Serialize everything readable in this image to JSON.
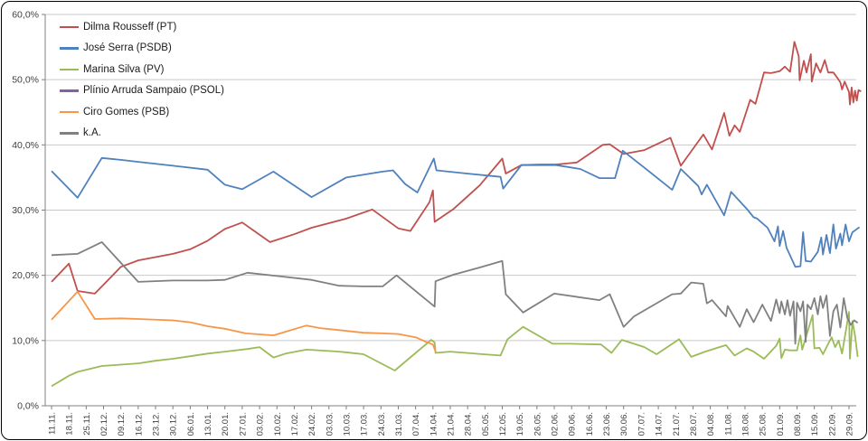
{
  "chart_data": {
    "type": "line",
    "title": "",
    "xlabel": "",
    "ylabel": "",
    "ylim": [
      0,
      60
    ],
    "grid": "horizontal",
    "legend_position": "top-left",
    "y_tick_labels": [
      "0,0%",
      "10,0%",
      "20,0%",
      "30,0%",
      "40,0%",
      "50,0%",
      "60,0%"
    ],
    "x_tick_labels": [
      "11.11.",
      "18.11.",
      "25.11.",
      "02.12.",
      "09.12.",
      "16.12.",
      "23.12.",
      "30.12.",
      "06.01.",
      "13.01.",
      "20.01.",
      "27.01.",
      "03.02.",
      "10.02.",
      "17.02.",
      "24.02.",
      "03.03.",
      "10.03.",
      "17.03.",
      "24.03.",
      "31.03.",
      "07.04.",
      "14.04.",
      "21.04.",
      "28.04.",
      "05.05.",
      "12.05.",
      "19.05.",
      "26.05.",
      "02.06.",
      "09.06.",
      "16.06.",
      "23.06.",
      "30.06.",
      "07.07.",
      "14.07.",
      "21.07.",
      "28.07.",
      "04.08.",
      "11.08.",
      "18.08.",
      "25.08.",
      "01.09.",
      "08.09.",
      "15.09.",
      "22.09.",
      "29.09."
    ],
    "x_axis_note": "x values below are fractional week offsets from 11.11. (tick 0) read from poll-date positions; y values are percent",
    "colors": {
      "background": "#FFFFFF",
      "frame_border": "#000000",
      "gridline": "#C9C9C9",
      "axis": "#808080",
      "tick_text": "#404040"
    },
    "series": [
      {
        "name": "Dilma Rousseff (PT)",
        "color": "#C0504D",
        "points": [
          [
            0,
            19.0
          ],
          [
            1,
            21.8
          ],
          [
            1.5,
            17.6
          ],
          [
            2.5,
            17.2
          ],
          [
            4,
            21.3
          ],
          [
            5,
            22.3
          ],
          [
            7,
            23.3
          ],
          [
            8,
            24.0
          ],
          [
            9,
            25.3
          ],
          [
            10,
            27.1
          ],
          [
            11,
            28.1
          ],
          [
            12.6,
            25.1
          ],
          [
            14,
            26.3
          ],
          [
            15,
            27.3
          ],
          [
            17,
            28.7
          ],
          [
            18.5,
            30.1
          ],
          [
            20,
            27.2
          ],
          [
            20.7,
            26.8
          ],
          [
            21.8,
            31.2
          ],
          [
            22.0,
            33.0
          ],
          [
            22.1,
            28.2
          ],
          [
            23.2,
            30.2
          ],
          [
            24.7,
            33.8
          ],
          [
            26,
            37.9
          ],
          [
            26.2,
            35.6
          ],
          [
            27.1,
            36.9
          ],
          [
            28.2,
            37.0
          ],
          [
            29.1,
            37.0
          ],
          [
            30.3,
            37.3
          ],
          [
            31.8,
            40.0
          ],
          [
            32.2,
            40.1
          ],
          [
            33,
            38.6
          ],
          [
            34.2,
            39.2
          ],
          [
            35.7,
            41.1
          ],
          [
            36.3,
            36.8
          ],
          [
            37.6,
            41.6
          ],
          [
            38.1,
            39.3
          ],
          [
            38.8,
            44.9
          ],
          [
            39.1,
            41.4
          ],
          [
            39.4,
            43.0
          ],
          [
            39.7,
            42.0
          ],
          [
            40.3,
            46.9
          ],
          [
            40.6,
            46.3
          ],
          [
            41.1,
            51.1
          ],
          [
            41.5,
            51.0
          ],
          [
            42.0,
            51.3
          ],
          [
            42.3,
            52.0
          ],
          [
            42.6,
            51.2
          ],
          [
            42.85,
            55.8
          ],
          [
            43.1,
            53.6
          ],
          [
            43.15,
            49.9
          ],
          [
            43.4,
            52.9
          ],
          [
            43.55,
            51.1
          ],
          [
            43.8,
            53.9
          ],
          [
            43.85,
            49.7
          ],
          [
            44.1,
            52.5
          ],
          [
            44.35,
            51.1
          ],
          [
            44.6,
            53.0
          ],
          [
            44.8,
            51.1
          ],
          [
            45.1,
            51.1
          ],
          [
            45.35,
            50.2
          ],
          [
            45.5,
            49.6
          ],
          [
            45.6,
            48.5
          ],
          [
            45.75,
            49.7
          ],
          [
            46.0,
            48.1
          ],
          [
            46.05,
            46.2
          ],
          [
            46.15,
            48.8
          ],
          [
            46.25,
            46.5
          ],
          [
            46.35,
            48.3
          ],
          [
            46.45,
            46.8
          ],
          [
            46.55,
            48.4
          ],
          [
            46.7,
            48.2
          ]
        ]
      },
      {
        "name": "José Serra (PSDB)",
        "color": "#4F81BD",
        "points": [
          [
            0,
            36.0
          ],
          [
            1.5,
            31.9
          ],
          [
            2.9,
            38.0
          ],
          [
            4,
            37.7
          ],
          [
            5,
            37.4
          ],
          [
            7,
            36.8
          ],
          [
            9,
            36.2
          ],
          [
            10,
            33.9
          ],
          [
            11,
            33.2
          ],
          [
            12.8,
            35.9
          ],
          [
            15,
            32.0
          ],
          [
            17,
            35.0
          ],
          [
            19.1,
            35.9
          ],
          [
            19.7,
            36.1
          ],
          [
            20.4,
            34.0
          ],
          [
            21.1,
            32.7
          ],
          [
            22.05,
            37.9
          ],
          [
            22.2,
            36.1
          ],
          [
            24,
            35.6
          ],
          [
            25.9,
            35.1
          ],
          [
            26.05,
            33.3
          ],
          [
            27.1,
            36.9
          ],
          [
            29.1,
            36.9
          ],
          [
            30.5,
            36.3
          ],
          [
            31.6,
            34.9
          ],
          [
            32.5,
            34.9
          ],
          [
            32.95,
            39.1
          ],
          [
            34.2,
            36.5
          ],
          [
            35.8,
            33.1
          ],
          [
            36.3,
            36.3
          ],
          [
            37.3,
            33.7
          ],
          [
            37.5,
            32.4
          ],
          [
            37.8,
            33.9
          ],
          [
            38.8,
            29.2
          ],
          [
            39.2,
            32.8
          ],
          [
            40.1,
            30.2
          ],
          [
            40.5,
            28.9
          ],
          [
            40.7,
            28.7
          ],
          [
            41.3,
            27.3
          ],
          [
            41.7,
            25.2
          ],
          [
            41.9,
            27.5
          ],
          [
            42.0,
            24.5
          ],
          [
            42.2,
            26.8
          ],
          [
            42.4,
            24.2
          ],
          [
            42.9,
            21.3
          ],
          [
            43.2,
            21.4
          ],
          [
            43.35,
            26.6
          ],
          [
            43.5,
            22.2
          ],
          [
            43.8,
            22.1
          ],
          [
            44.2,
            23.6
          ],
          [
            44.4,
            25.8
          ],
          [
            44.5,
            23.2
          ],
          [
            44.7,
            26.2
          ],
          [
            44.9,
            23.4
          ],
          [
            45.1,
            27.8
          ],
          [
            45.25,
            24.1
          ],
          [
            45.5,
            26.4
          ],
          [
            45.6,
            24.6
          ],
          [
            45.8,
            27.8
          ],
          [
            46.0,
            25.2
          ],
          [
            46.2,
            26.6
          ],
          [
            46.4,
            27.0
          ],
          [
            46.6,
            27.4
          ]
        ]
      },
      {
        "name": "Marina Silva (PV)",
        "color": "#9BBB59",
        "points": [
          [
            0,
            3.0
          ],
          [
            1,
            4.6
          ],
          [
            1.5,
            5.2
          ],
          [
            2.9,
            6.1
          ],
          [
            4,
            6.3
          ],
          [
            5,
            6.5
          ],
          [
            6,
            6.9
          ],
          [
            7,
            7.2
          ],
          [
            8,
            7.6
          ],
          [
            9,
            8.0
          ],
          [
            10,
            8.3
          ],
          [
            11.3,
            8.7
          ],
          [
            12,
            9.0
          ],
          [
            12.8,
            7.4
          ],
          [
            13.5,
            8.0
          ],
          [
            14.7,
            8.6
          ],
          [
            16,
            8.4
          ],
          [
            16.6,
            8.3
          ],
          [
            18,
            7.9
          ],
          [
            19.8,
            5.4
          ],
          [
            21.9,
            10.1
          ],
          [
            22.1,
            9.7
          ],
          [
            22.15,
            8.1
          ],
          [
            23,
            8.3
          ],
          [
            24.9,
            7.9
          ],
          [
            25.9,
            7.7
          ],
          [
            26.3,
            10.2
          ],
          [
            27.2,
            12.1
          ],
          [
            28.9,
            9.5
          ],
          [
            30,
            9.5
          ],
          [
            31.7,
            9.4
          ],
          [
            32.3,
            8.1
          ],
          [
            32.9,
            10.1
          ],
          [
            34.2,
            9.0
          ],
          [
            34.9,
            7.9
          ],
          [
            36.2,
            10.2
          ],
          [
            36.9,
            7.5
          ],
          [
            37.7,
            8.3
          ],
          [
            38.9,
            9.3
          ],
          [
            39.4,
            7.7
          ],
          [
            40.1,
            8.8
          ],
          [
            40.5,
            8.3
          ],
          [
            41.1,
            7.2
          ],
          [
            41.8,
            9.2
          ],
          [
            42.0,
            10.3
          ],
          [
            42.1,
            7.3
          ],
          [
            42.3,
            8.6
          ],
          [
            42.6,
            8.5
          ],
          [
            43.0,
            8.5
          ],
          [
            43.2,
            10.8
          ],
          [
            43.3,
            8.6
          ],
          [
            43.9,
            13.9
          ],
          [
            44.0,
            8.8
          ],
          [
            44.3,
            8.9
          ],
          [
            44.5,
            7.9
          ],
          [
            44.8,
            9.5
          ],
          [
            45.0,
            10.5
          ],
          [
            45.2,
            9.0
          ],
          [
            45.4,
            10.0
          ],
          [
            45.6,
            8.0
          ],
          [
            46.0,
            14.4
          ],
          [
            46.05,
            7.2
          ],
          [
            46.2,
            13.0
          ],
          [
            46.35,
            10.7
          ],
          [
            46.5,
            7.5
          ]
        ]
      },
      {
        "name": "Plínio Arruda Sampaio (PSOL)",
        "color": "#8064A2",
        "points": []
      },
      {
        "name": "Ciro Gomes (PSB)",
        "color": "#F79646",
        "points": [
          [
            0,
            13.2
          ],
          [
            1.5,
            17.5
          ],
          [
            2.5,
            13.3
          ],
          [
            4,
            13.4
          ],
          [
            5,
            13.3
          ],
          [
            7,
            13.1
          ],
          [
            8,
            12.8
          ],
          [
            9,
            12.2
          ],
          [
            10,
            11.8
          ],
          [
            11.2,
            11.1
          ],
          [
            12.8,
            10.8
          ],
          [
            14.7,
            12.3
          ],
          [
            15.5,
            11.9
          ],
          [
            16.6,
            11.6
          ],
          [
            18,
            11.2
          ],
          [
            19.1,
            11.1
          ],
          [
            20,
            11.0
          ],
          [
            21,
            10.5
          ],
          [
            21.6,
            9.8
          ],
          [
            22.0,
            9.4
          ],
          [
            22.15,
            8.3
          ]
        ]
      },
      {
        "name": "k.A.",
        "color": "#808080",
        "points": [
          [
            0,
            23.1
          ],
          [
            1.5,
            23.3
          ],
          [
            2.9,
            25.1
          ],
          [
            5,
            19.0
          ],
          [
            7,
            19.2
          ],
          [
            9,
            19.2
          ],
          [
            10,
            19.3
          ],
          [
            11.3,
            20.4
          ],
          [
            13,
            19.9
          ],
          [
            15,
            19.3
          ],
          [
            16.6,
            18.4
          ],
          [
            18,
            18.3
          ],
          [
            19.1,
            18.3
          ],
          [
            19.9,
            20.0
          ],
          [
            22.1,
            15.2
          ],
          [
            22.15,
            19.1
          ],
          [
            23.2,
            20.1
          ],
          [
            24.7,
            21.2
          ],
          [
            26.0,
            22.2
          ],
          [
            26.2,
            17.1
          ],
          [
            27.2,
            14.3
          ],
          [
            29,
            17.2
          ],
          [
            31.6,
            16.2
          ],
          [
            32.2,
            17.1
          ],
          [
            33,
            12.1
          ],
          [
            33.6,
            13.7
          ],
          [
            35.8,
            17.1
          ],
          [
            36.3,
            17.2
          ],
          [
            36.9,
            18.9
          ],
          [
            37.6,
            18.7
          ],
          [
            37.8,
            15.7
          ],
          [
            38.1,
            16.2
          ],
          [
            38.9,
            13.7
          ],
          [
            39.0,
            15.3
          ],
          [
            39.7,
            12.1
          ],
          [
            40.1,
            14.8
          ],
          [
            40.5,
            12.8
          ],
          [
            41.0,
            15.5
          ],
          [
            41.5,
            13.0
          ],
          [
            41.8,
            16.3
          ],
          [
            42.0,
            14.2
          ],
          [
            42.1,
            16.0
          ],
          [
            42.3,
            14.0
          ],
          [
            42.45,
            16.2
          ],
          [
            42.6,
            13.8
          ],
          [
            42.8,
            16.0
          ],
          [
            42.9,
            9.5
          ],
          [
            43.0,
            15.8
          ],
          [
            43.2,
            14.5
          ],
          [
            43.35,
            16.0
          ],
          [
            43.5,
            9.8
          ],
          [
            43.6,
            15.5
          ],
          [
            43.8,
            14.8
          ],
          [
            44.0,
            16.5
          ],
          [
            44.2,
            14.0
          ],
          [
            44.35,
            16.8
          ],
          [
            44.5,
            15.0
          ],
          [
            44.7,
            16.9
          ],
          [
            44.9,
            10.7
          ],
          [
            45.1,
            14.5
          ],
          [
            45.3,
            15.5
          ],
          [
            45.5,
            12.0
          ],
          [
            45.7,
            16.5
          ],
          [
            45.9,
            13.5
          ],
          [
            46.1,
            12.4
          ],
          [
            46.3,
            13.1
          ],
          [
            46.5,
            12.7
          ]
        ]
      }
    ]
  }
}
